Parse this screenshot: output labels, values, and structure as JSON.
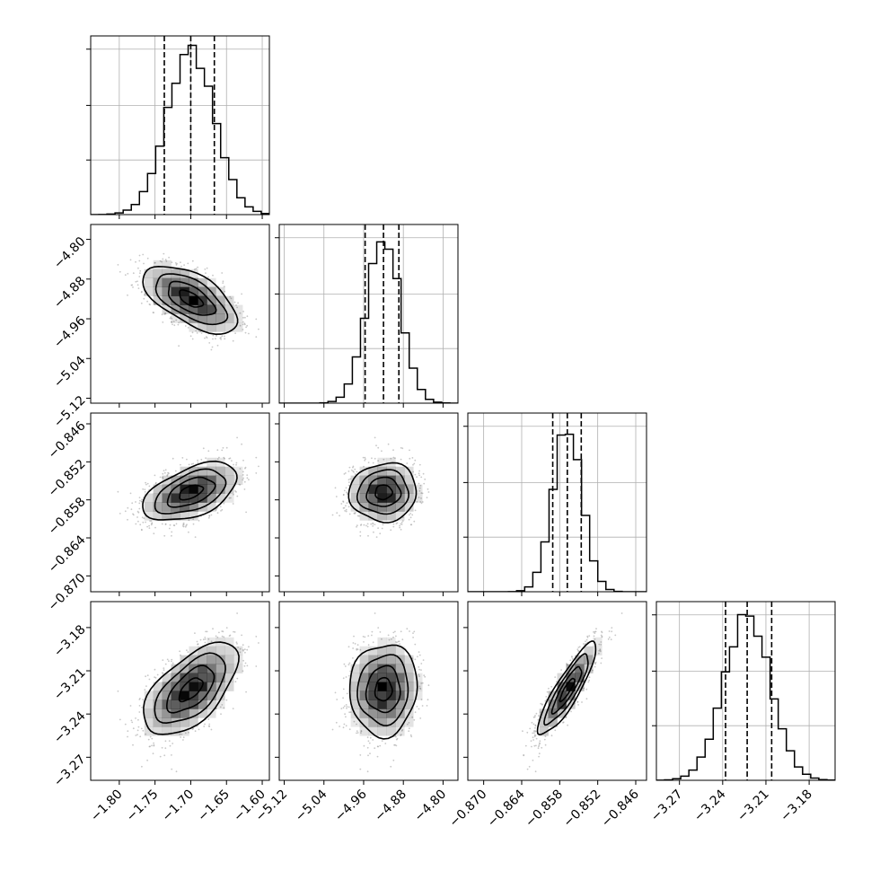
{
  "chart_data": {
    "type": "corner",
    "parameters": [
      {
        "median": -1.7,
        "q16": -1.737,
        "q84": -1.667,
        "sigma": 0.033,
        "lim": [
          -1.84,
          -1.59
        ],
        "ticks": [
          -1.8,
          -1.75,
          -1.7,
          -1.65,
          -1.6
        ],
        "tick_labels": [
          "−1.80",
          "−1.75",
          "−1.70",
          "−1.65",
          "−1.60"
        ]
      },
      {
        "median": -4.92,
        "q16": -4.957,
        "q84": -4.889,
        "sigma": 0.034,
        "lim": [
          -5.13,
          -4.77
        ],
        "ticks": [
          -5.12,
          -5.04,
          -4.96,
          -4.88,
          -4.8
        ],
        "tick_labels": [
          "−5.12",
          "−5.04",
          "−4.96",
          "−4.88",
          "−4.80"
        ]
      },
      {
        "median": -0.8568,
        "q16": -0.8591,
        "q84": -0.8546,
        "sigma": 0.0023,
        "lim": [
          -0.8725,
          -0.8443
        ],
        "ticks": [
          -0.87,
          -0.864,
          -0.858,
          -0.852,
          -0.846
        ],
        "tick_labels": [
          "−0.870",
          "−0.864",
          "−0.858",
          "−0.852",
          "−0.846"
        ]
      },
      {
        "median": -3.223,
        "q16": -3.238,
        "q84": -3.206,
        "sigma": 0.016,
        "lim": [
          -3.286,
          -3.162
        ],
        "ticks": [
          -3.27,
          -3.24,
          -3.21,
          -3.18
        ],
        "tick_labels": [
          "−3.27",
          "−3.24",
          "−3.21",
          "−3.18"
        ]
      }
    ],
    "correlations": [
      [
        1,
        -0.6,
        0.5,
        0.6
      ],
      [
        -0.6,
        1,
        0.05,
        0.05
      ],
      [
        0.5,
        0.05,
        1,
        0.88
      ],
      [
        0.6,
        0.05,
        0.88,
        1
      ]
    ],
    "grid": true,
    "n_samples_shown": 1400
  },
  "colors": {
    "density": "#000000",
    "points": "#9a9a9a",
    "grid": "#b0b0b0"
  }
}
